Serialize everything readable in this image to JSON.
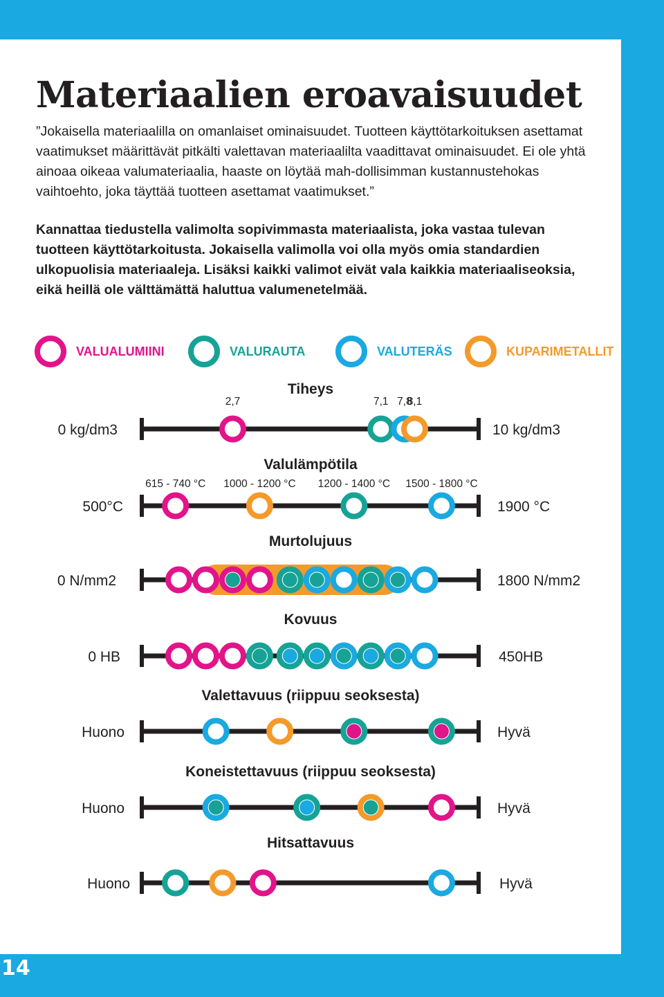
{
  "page": {
    "title": "Materiaalien eroavaisuudet",
    "intro": "”Jokaisella materiaalilla on omanlaiset ominaisuudet. Tuotteen käyttötarkoituksen asettamat vaatimukset määrittävät pitkälti valettavan materiaalilta vaadittavat ominaisuudet. Ei ole yhtä ainoaa oikeaa valumateriaalia, haaste on löytää mah-dollisimman kustannustehokas vaihtoehto, joka täyttää tuotteen asettamat vaatimukset.”",
    "bold_text": "Kannattaa tiedustella valimolta sopivimmasta materiaalista, joka vastaa tulevan tuotteen käyttötarkoitusta. Jokaisella valimolla voi olla myös omia standardien ulkopuolisia materiaaleja. Lisäksi kaikki valimot eivät vala kaikkia materiaaliseoksia, eikä heillä ole välttämättä haluttua valumenetelmää.",
    "page_number": "14"
  },
  "colors": {
    "background": "#1aa9e0",
    "text": "#231f20",
    "axis": "#231f20"
  },
  "legend": [
    {
      "key": "al",
      "label": "VALUALUMIINI",
      "color": "#e2148a"
    },
    {
      "key": "fe",
      "label": "VALURAUTA",
      "color": "#16a396"
    },
    {
      "key": "st",
      "label": "VALUTERÄS",
      "color": "#1aa9e0"
    },
    {
      "key": "cu",
      "label": "KUPARIMETALLIT",
      "color": "#f39a2b"
    }
  ],
  "chart_data": [
    {
      "type": "scatter",
      "title": "Tiheys",
      "min_label": "0 kg/dm3",
      "max_label": "10 kg/dm3",
      "range": [
        0,
        10
      ],
      "points": [
        {
          "material": "al",
          "value": 2.7,
          "label": "2,7"
        },
        {
          "material": "fe",
          "value": 7.1,
          "label": "7,1"
        },
        {
          "material": "st",
          "value": 7.8,
          "label": "7,8"
        },
        {
          "material": "cu",
          "value": 8.1,
          "label": "8,1"
        }
      ]
    },
    {
      "type": "scatter",
      "title": "Valulämpötila",
      "min_label": "500°C",
      "max_label": "1900 °C",
      "range": [
        0,
        100
      ],
      "points": [
        {
          "material": "al",
          "value": 10,
          "label": "615 - 740 °C"
        },
        {
          "material": "cu",
          "value": 35,
          "label": "1000 - 1200 °C"
        },
        {
          "material": "fe",
          "value": 63,
          "label": "1200 - 1400 °C"
        },
        {
          "material": "st",
          "value": 89,
          "label": "1500 - 1800 °C"
        }
      ]
    },
    {
      "type": "scatter",
      "title": "Murtolujuus",
      "min_label": "0 N/mm2",
      "max_label": "1800 N/mm2",
      "range": [
        0,
        100
      ],
      "ranges": [
        {
          "material": "cu",
          "from": 22,
          "to": 72
        }
      ],
      "points": [
        {
          "material": "al",
          "value": 11
        },
        {
          "material": "al",
          "value": 19
        },
        {
          "material": "al",
          "value": 27,
          "fill": "fe"
        },
        {
          "material": "al",
          "value": 35
        },
        {
          "material": "fe",
          "value": 44,
          "fill": "fe"
        },
        {
          "material": "st",
          "value": 52,
          "fill": "fe"
        },
        {
          "material": "st",
          "value": 60
        },
        {
          "material": "fe",
          "value": 68,
          "fill": "fe"
        },
        {
          "material": "st",
          "value": 76,
          "fill": "fe"
        },
        {
          "material": "st",
          "value": 84
        }
      ]
    },
    {
      "type": "scatter",
      "title": "Kovuus",
      "min_label": "0 HB",
      "max_label": "450HB",
      "range": [
        0,
        100
      ],
      "points": [
        {
          "material": "al",
          "value": 11
        },
        {
          "material": "al",
          "value": 19
        },
        {
          "material": "al",
          "value": 27
        },
        {
          "material": "fe",
          "value": 35,
          "fill": "fe"
        },
        {
          "material": "fe",
          "value": 44,
          "fill": "st"
        },
        {
          "material": "fe",
          "value": 52,
          "fill": "st"
        },
        {
          "material": "st",
          "value": 60,
          "fill": "fe"
        },
        {
          "material": "fe",
          "value": 68,
          "fill": "st"
        },
        {
          "material": "st",
          "value": 76,
          "fill": "fe"
        },
        {
          "material": "st",
          "value": 84
        }
      ]
    },
    {
      "type": "scatter",
      "title": "Valettavuus (riippuu seoksesta)",
      "min_label": "Huono",
      "max_label": "Hyvä",
      "range": [
        0,
        100
      ],
      "points": [
        {
          "material": "st",
          "value": 22
        },
        {
          "material": "cu",
          "value": 41
        },
        {
          "material": "fe",
          "value": 63,
          "fill": "al"
        },
        {
          "material": "fe",
          "value": 89,
          "fill": "al"
        }
      ]
    },
    {
      "type": "scatter",
      "title": "Koneistettavuus (riippuu seoksesta)",
      "min_label": "Huono",
      "max_label": "Hyvä",
      "range": [
        0,
        100
      ],
      "points": [
        {
          "material": "st",
          "value": 22,
          "fill": "fe"
        },
        {
          "material": "fe",
          "value": 49,
          "fill": "st"
        },
        {
          "material": "cu",
          "value": 68,
          "fill": "fe"
        },
        {
          "material": "al",
          "value": 89
        }
      ]
    },
    {
      "type": "scatter",
      "title": "Hitsattavuus",
      "min_label": "Huono",
      "max_label": "Hyvä",
      "range": [
        0,
        100
      ],
      "points": [
        {
          "material": "fe",
          "value": 10
        },
        {
          "material": "cu",
          "value": 24
        },
        {
          "material": "al",
          "value": 36
        },
        {
          "material": "st",
          "value": 89
        }
      ]
    }
  ]
}
